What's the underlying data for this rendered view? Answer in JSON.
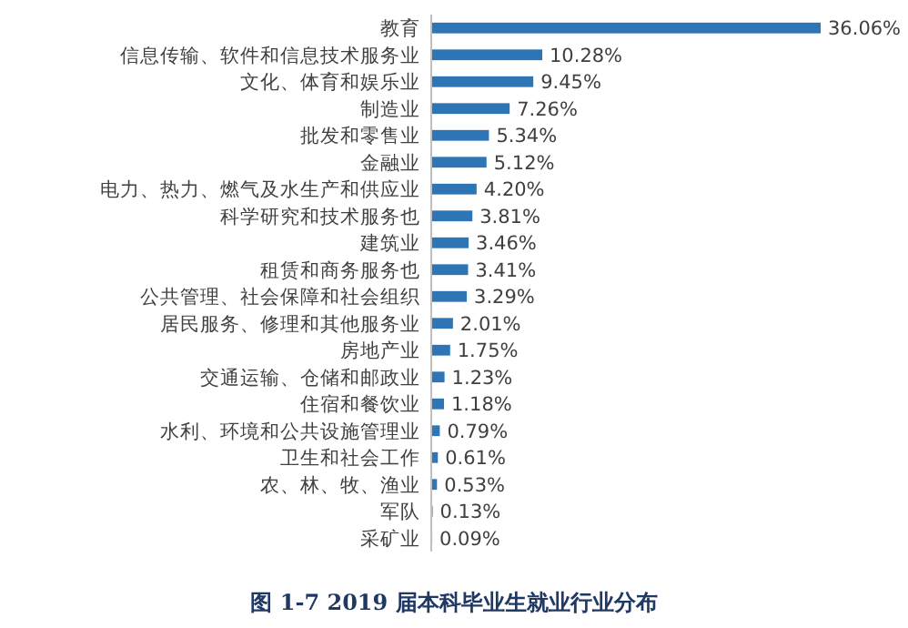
{
  "chart_data": {
    "type": "bar",
    "orientation": "horizontal",
    "title": "图 1-7   2019 届本科毕业生就业行业分布",
    "categories": [
      "教育",
      "信息传输、软件和信息技术服务业",
      "文化、体育和娱乐业",
      "制造业",
      "批发和零售业",
      "金融业",
      "电力、热力、燃气及水生产和供应业",
      "科学研究和技术服务也",
      "建筑业",
      "租赁和商务服务也",
      "公共管理、社会保障和社会组织",
      "居民服务、修理和其他服务业",
      "房地产业",
      "交通运输、仓储和邮政业",
      "住宿和餐饮业",
      "水利、环境和公共设施管理业",
      "卫生和社会工作",
      "农、林、牧、渔业",
      "军队",
      "采矿业"
    ],
    "values": [
      36.06,
      10.28,
      9.45,
      7.26,
      5.34,
      5.12,
      4.2,
      3.81,
      3.46,
      3.41,
      3.29,
      2.01,
      1.75,
      1.23,
      1.18,
      0.79,
      0.61,
      0.53,
      0.13,
      0.09
    ],
    "value_labels": [
      "36.06%",
      "10.28%",
      "9.45%",
      "7.26%",
      "5.34%",
      "5.12%",
      "4.20%",
      "3.81%",
      "3.46%",
      "3.41%",
      "3.29%",
      "2.01%",
      "1.75%",
      "1.23%",
      "1.18%",
      "0.79%",
      "0.61%",
      "0.53%",
      "0.13%",
      "0.09%"
    ],
    "color": "#2e75b6"
  }
}
